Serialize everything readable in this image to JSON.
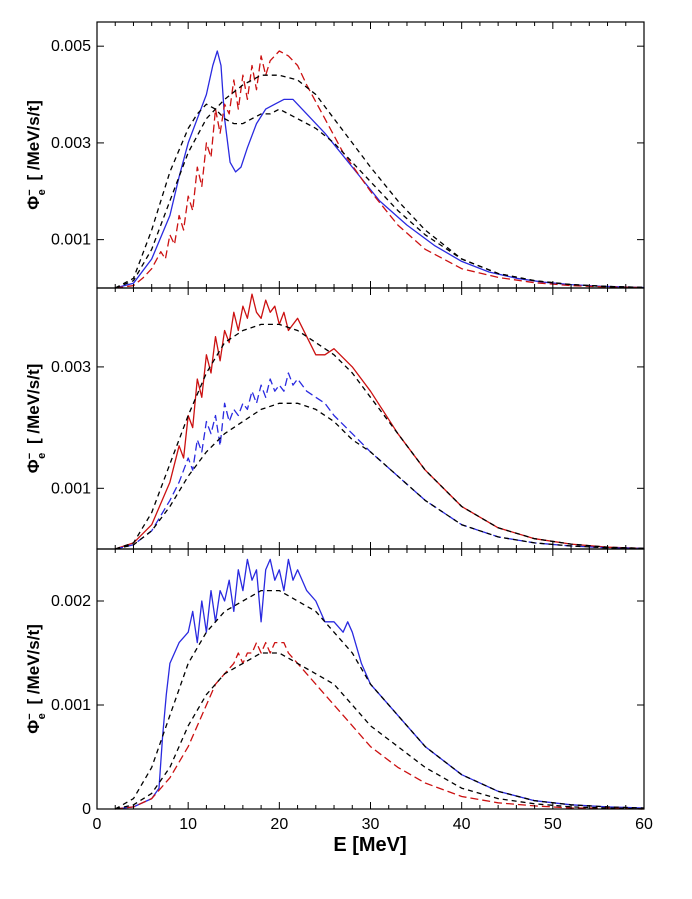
{
  "chart_data": [
    {
      "type": "line",
      "panel": "top",
      "ylabel_symbol": "Φ",
      "ylabel_sub": "e",
      "ylabel_sup": "−",
      "ylabel_unit": "[ /MeV/s/t]",
      "xlim": [
        0,
        60
      ],
      "ylim": [
        0,
        0.0055
      ],
      "ytick_values": [
        0.001,
        0.003,
        0.005
      ],
      "ytick_labels": [
        "0.001",
        "0.003",
        "0.005"
      ],
      "series": [
        {
          "name": "blue solid",
          "color": "#2a2ae0",
          "dash": "solid",
          "x": [
            2,
            4,
            6,
            8,
            9,
            10,
            11,
            12,
            12.7,
            13.2,
            13.6,
            14,
            14.6,
            15.2,
            15.8,
            16.5,
            17.5,
            18.5,
            19.5,
            20.5,
            21.5,
            23,
            25,
            28,
            31,
            34,
            37,
            40,
            43,
            46,
            49,
            52,
            55,
            58,
            60
          ],
          "y": [
            0,
            0.0001,
            0.0006,
            0.0015,
            0.0023,
            0.003,
            0.0035,
            0.004,
            0.0046,
            0.0049,
            0.0046,
            0.0035,
            0.0026,
            0.0024,
            0.0025,
            0.0029,
            0.0034,
            0.0037,
            0.0038,
            0.0039,
            0.0039,
            0.0036,
            0.0032,
            0.0025,
            0.0018,
            0.0013,
            0.00088,
            0.00055,
            0.00033,
            0.0002,
            0.00012,
            7e-05,
            4e-05,
            2e-05,
            1e-05
          ]
        },
        {
          "name": "red dashed",
          "color": "#cc1111",
          "dash": "8,4",
          "x": [
            2,
            4,
            5,
            6,
            7,
            7.5,
            8,
            8.5,
            9,
            9.5,
            10,
            10.5,
            11,
            11.5,
            12,
            12.5,
            13,
            13.5,
            14,
            14.5,
            15,
            15.5,
            16,
            16.5,
            17,
            17.5,
            18,
            18.5,
            19,
            20,
            21,
            22,
            23,
            25,
            27,
            30,
            33,
            36,
            40,
            44,
            48,
            52,
            56,
            60
          ],
          "y": [
            0,
            5e-05,
            0.0002,
            0.0004,
            0.00075,
            0.0006,
            0.0011,
            0.0009,
            0.0015,
            0.0012,
            0.0019,
            0.0016,
            0.0025,
            0.0021,
            0.003,
            0.0027,
            0.0037,
            0.0032,
            0.0038,
            0.0036,
            0.0043,
            0.0037,
            0.0044,
            0.0039,
            0.0046,
            0.0041,
            0.0048,
            0.0044,
            0.0047,
            0.0049,
            0.0048,
            0.0046,
            0.0042,
            0.0035,
            0.0028,
            0.002,
            0.0013,
            0.0008,
            0.0004,
            0.00022,
            0.00011,
            5e-05,
            2e-05,
            1e-05
          ]
        },
        {
          "name": "black dashed upper",
          "color": "#000000",
          "dash": "5,4",
          "x": [
            2,
            4,
            6,
            8,
            10,
            12,
            14,
            16,
            18,
            20,
            22,
            24,
            26,
            28,
            30,
            33,
            36,
            40,
            44,
            48,
            52,
            56,
            60
          ],
          "y": [
            0,
            0.00015,
            0.0008,
            0.0018,
            0.0028,
            0.0035,
            0.0039,
            0.0042,
            0.0044,
            0.0044,
            0.0043,
            0.004,
            0.0035,
            0.003,
            0.0025,
            0.0018,
            0.0012,
            0.0006,
            0.0003,
            0.00015,
            7e-05,
            3e-05,
            1e-05
          ]
        },
        {
          "name": "black dashed lower",
          "color": "#000000",
          "dash": "5,4",
          "x": [
            2,
            4,
            6,
            8,
            10,
            11,
            12,
            13,
            14,
            15,
            16,
            17,
            18,
            19,
            20,
            21,
            22,
            24,
            26,
            28,
            30,
            33,
            36,
            40,
            44,
            48,
            52,
            56,
            60
          ],
          "y": [
            0,
            0.0002,
            0.0012,
            0.0024,
            0.0033,
            0.0036,
            0.0038,
            0.0037,
            0.0035,
            0.0034,
            0.0034,
            0.0035,
            0.0036,
            0.0036,
            0.0037,
            0.0036,
            0.0035,
            0.0033,
            0.003,
            0.0026,
            0.0022,
            0.0016,
            0.0011,
            0.0006,
            0.0003,
            0.00015,
            7e-05,
            3e-05,
            1e-05
          ]
        }
      ]
    },
    {
      "type": "line",
      "panel": "middle",
      "ylabel_symbol": "Φ",
      "ylabel_sub": "e",
      "ylabel_sup": "−",
      "ylabel_unit": "[ /MeV/s/t]",
      "xlim": [
        0,
        60
      ],
      "ylim": [
        0,
        0.0043
      ],
      "ytick_values": [
        0.001,
        0.003
      ],
      "ytick_labels": [
        "0.001",
        "0.003"
      ],
      "series": [
        {
          "name": "red solid",
          "color": "#cc1111",
          "dash": "solid",
          "x": [
            2,
            4,
            6,
            8,
            9,
            9.5,
            10,
            10.5,
            11,
            11.5,
            12,
            12.5,
            13,
            13.5,
            14,
            14.5,
            15,
            15.5,
            16,
            16.5,
            17,
            17.5,
            18,
            18.5,
            19,
            19.5,
            20,
            20.5,
            21,
            22,
            23,
            24,
            25,
            26,
            28,
            30,
            33,
            36,
            40,
            44,
            48,
            52,
            56,
            60
          ],
          "y": [
            0,
            0.0001,
            0.0004,
            0.0011,
            0.0017,
            0.0015,
            0.0022,
            0.002,
            0.0028,
            0.0025,
            0.0032,
            0.0029,
            0.0035,
            0.0031,
            0.0036,
            0.0034,
            0.0039,
            0.0036,
            0.004,
            0.0038,
            0.0042,
            0.0039,
            0.0038,
            0.0041,
            0.0039,
            0.004,
            0.0037,
            0.0039,
            0.0036,
            0.0038,
            0.0035,
            0.0032,
            0.0032,
            0.0033,
            0.003,
            0.0026,
            0.0019,
            0.0013,
            0.0007,
            0.00035,
            0.00017,
            8e-05,
            3e-05,
            1e-05
          ]
        },
        {
          "name": "blue dashed",
          "color": "#2a2ae0",
          "dash": "8,4",
          "x": [
            2,
            4,
            6,
            8,
            9,
            10,
            10.5,
            11,
            11.5,
            12,
            12.5,
            13,
            13.5,
            14,
            14.5,
            15,
            15.5,
            16,
            16.5,
            17,
            17.5,
            18,
            18.5,
            19,
            19.5,
            20,
            20.5,
            21,
            21.5,
            22,
            23,
            24,
            25,
            26,
            28,
            30,
            33,
            36,
            40,
            44,
            48,
            52,
            56,
            60
          ],
          "y": [
            0,
            7e-05,
            0.0003,
            0.0008,
            0.0011,
            0.0015,
            0.0013,
            0.0018,
            0.0016,
            0.0021,
            0.0019,
            0.0022,
            0.0017,
            0.0024,
            0.0021,
            0.0023,
            0.0022,
            0.0024,
            0.0023,
            0.0026,
            0.0024,
            0.0027,
            0.0025,
            0.0028,
            0.0026,
            0.0027,
            0.0026,
            0.0029,
            0.0027,
            0.0028,
            0.0026,
            0.0025,
            0.0024,
            0.0022,
            0.0019,
            0.0016,
            0.0012,
            0.0008,
            0.0004,
            0.0002,
            0.0001,
            5e-05,
            2e-05,
            1e-05
          ]
        },
        {
          "name": "black dashed upper",
          "color": "#000000",
          "dash": "5,4",
          "x": [
            2,
            4,
            6,
            8,
            10,
            12,
            14,
            16,
            18,
            20,
            22,
            24,
            26,
            28,
            30,
            33,
            36,
            40,
            44,
            48,
            52,
            56,
            60
          ],
          "y": [
            0,
            0.0001,
            0.0006,
            0.0014,
            0.0022,
            0.0029,
            0.0034,
            0.0036,
            0.0037,
            0.0037,
            0.0036,
            0.0034,
            0.0032,
            0.0029,
            0.0025,
            0.0019,
            0.0013,
            0.0007,
            0.00035,
            0.00017,
            8e-05,
            3e-05,
            1e-05
          ]
        },
        {
          "name": "black dashed lower",
          "color": "#000000",
          "dash": "5,4",
          "x": [
            2,
            4,
            6,
            8,
            10,
            12,
            14,
            16,
            18,
            20,
            21,
            22,
            24,
            26,
            28,
            30,
            33,
            36,
            40,
            44,
            48,
            52,
            56,
            60
          ],
          "y": [
            0,
            7e-05,
            0.0003,
            0.0007,
            0.0012,
            0.0016,
            0.0019,
            0.0021,
            0.0023,
            0.0024,
            0.0024,
            0.0024,
            0.0023,
            0.0021,
            0.0018,
            0.0016,
            0.0012,
            0.0008,
            0.0004,
            0.0002,
            0.0001,
            5e-05,
            2e-05,
            1e-05
          ]
        }
      ]
    },
    {
      "type": "line",
      "panel": "bottom",
      "ylabel_symbol": "Φ",
      "ylabel_sub": "e",
      "ylabel_sup": "−",
      "ylabel_unit": "[ /MeV/s/t]",
      "xlabel": "E [MeV]",
      "xlim": [
        0,
        60
      ],
      "ylim": [
        0,
        0.0025
      ],
      "xtick_values": [
        0,
        10,
        20,
        30,
        40,
        50,
        60
      ],
      "xtick_labels": [
        "0",
        "10",
        "20",
        "30",
        "40",
        "50",
        "60"
      ],
      "ytick_values": [
        0,
        0.001,
        0.002
      ],
      "ytick_labels": [
        "0",
        "0.001",
        "0.002"
      ],
      "series": [
        {
          "name": "blue solid",
          "color": "#2a2ae0",
          "dash": "solid",
          "x": [
            2,
            4,
            6,
            6.8,
            7.2,
            7.6,
            8,
            9,
            10,
            10.5,
            11,
            11.5,
            12,
            12.5,
            13,
            13.5,
            14,
            14.5,
            15,
            15.5,
            16,
            16.5,
            17,
            17.5,
            18,
            18.5,
            19,
            19.5,
            20,
            20.5,
            21,
            21.5,
            22,
            23,
            24,
            25,
            26,
            27,
            27.5,
            28,
            29,
            30,
            33,
            36,
            40,
            44,
            48,
            52,
            56,
            60
          ],
          "y": [
            0,
            2e-05,
            0.0001,
            0.0002,
            0.0007,
            0.0011,
            0.0014,
            0.0016,
            0.0017,
            0.0019,
            0.0016,
            0.002,
            0.0017,
            0.0021,
            0.0018,
            0.0021,
            0.002,
            0.0022,
            0.0019,
            0.0023,
            0.0021,
            0.0024,
            0.0022,
            0.0023,
            0.0018,
            0.0023,
            0.0024,
            0.0022,
            0.0023,
            0.0021,
            0.0024,
            0.0022,
            0.0023,
            0.0021,
            0.002,
            0.0018,
            0.0018,
            0.0017,
            0.0018,
            0.0017,
            0.0014,
            0.0012,
            0.0009,
            0.0006,
            0.00033,
            0.00017,
            8e-05,
            4e-05,
            2e-05,
            1e-05
          ]
        },
        {
          "name": "red dashed",
          "color": "#cc1111",
          "dash": "8,4",
          "x": [
            2,
            4,
            6,
            8,
            10,
            12,
            13,
            14,
            15,
            15.5,
            16,
            16.5,
            17,
            17.5,
            18,
            18.5,
            19,
            19.5,
            20,
            20.5,
            21,
            22,
            23,
            24,
            26,
            28,
            30,
            33,
            36,
            40,
            44,
            48,
            52,
            56,
            60
          ],
          "y": [
            0,
            2e-05,
            0.0001,
            0.0003,
            0.0006,
            0.001,
            0.0012,
            0.0013,
            0.0014,
            0.0015,
            0.0014,
            0.0015,
            0.0015,
            0.0016,
            0.0015,
            0.0016,
            0.0015,
            0.0016,
            0.0016,
            0.0016,
            0.0015,
            0.0014,
            0.0013,
            0.0012,
            0.001,
            0.0008,
            0.0006,
            0.0004,
            0.00025,
            0.00012,
            6e-05,
            3e-05,
            1e-05,
            1e-05,
            0
          ]
        },
        {
          "name": "black dashed upper",
          "color": "#000000",
          "dash": "5,4",
          "x": [
            2,
            4,
            6,
            8,
            10,
            12,
            14,
            16,
            18,
            20,
            22,
            24,
            26,
            28,
            30,
            33,
            36,
            40,
            44,
            48,
            52,
            56,
            60
          ],
          "y": [
            0,
            0.0001,
            0.0004,
            0.0009,
            0.0014,
            0.0017,
            0.0019,
            0.002,
            0.0021,
            0.0021,
            0.002,
            0.0019,
            0.0017,
            0.0015,
            0.0012,
            0.0009,
            0.0006,
            0.00033,
            0.00017,
            8e-05,
            4e-05,
            2e-05,
            1e-05
          ]
        },
        {
          "name": "black dashed lower",
          "color": "#000000",
          "dash": "5,4",
          "x": [
            2,
            4,
            6,
            8,
            10,
            12,
            14,
            16,
            18,
            20,
            22,
            24,
            26,
            28,
            30,
            33,
            36,
            40,
            44,
            48,
            52,
            56,
            60
          ],
          "y": [
            0,
            4e-05,
            0.00015,
            0.0004,
            0.0008,
            0.0011,
            0.0013,
            0.0014,
            0.0015,
            0.0015,
            0.0014,
            0.0013,
            0.0012,
            0.001,
            0.0008,
            0.0006,
            0.0004,
            0.0002,
            0.0001,
            5e-05,
            2e-05,
            1e-05,
            0
          ]
        }
      ]
    }
  ]
}
